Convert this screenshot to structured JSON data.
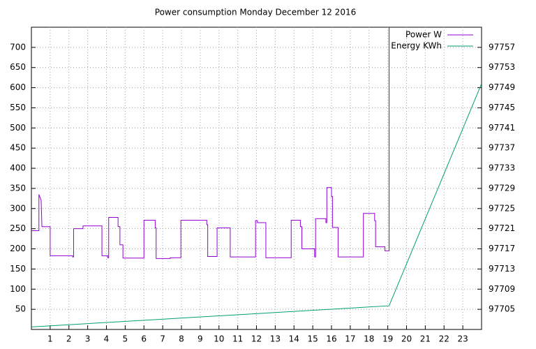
{
  "chart_data": {
    "type": "line",
    "title": "Power consumption Monday December 12 2016",
    "xlim": [
      0,
      24
    ],
    "xticks": [
      1,
      2,
      3,
      4,
      5,
      6,
      7,
      8,
      9,
      10,
      11,
      12,
      13,
      14,
      15,
      16,
      17,
      18,
      19,
      20,
      21,
      22,
      23
    ],
    "ylim": [
      0,
      750
    ],
    "yticks": [
      50,
      100,
      150,
      200,
      250,
      300,
      350,
      400,
      450,
      500,
      550,
      600,
      650,
      700
    ],
    "y2lim": [
      97701,
      97761
    ],
    "y2ticks": [
      97705,
      97709,
      97713,
      97717,
      97721,
      97725,
      97729,
      97733,
      97737,
      97741,
      97745,
      97749,
      97753,
      97757
    ],
    "grid": true,
    "legend": "top-right",
    "series": [
      {
        "name": "Power W",
        "color": "#9400d3",
        "x": [
          0,
          0.4,
          0.4,
          0.52,
          0.56,
          1.0,
          1.0,
          2.2,
          2.2,
          2.25,
          2.25,
          2.75,
          2.75,
          3.76,
          3.76,
          4.07,
          4.07,
          4.12,
          4.12,
          4.62,
          4.62,
          4.72,
          4.72,
          4.88,
          4.88,
          6.0,
          6.0,
          6.6,
          6.6,
          6.65,
          6.65,
          7.4,
          7.4,
          7.97,
          7.97,
          9.35,
          9.35,
          9.4,
          9.4,
          9.9,
          9.9,
          10.6,
          10.6,
          11.95,
          11.95,
          12.05,
          12.05,
          12.5,
          12.5,
          13.85,
          13.85,
          14.34,
          14.34,
          14.42,
          14.42,
          15.1,
          15.1,
          15.15,
          15.15,
          15.7,
          15.7,
          15.75,
          15.75,
          16.0,
          16.0,
          16.05,
          16.05,
          16.35,
          16.35,
          17.7,
          17.7,
          18.3,
          18.3,
          18.35,
          18.35,
          18.85,
          18.85,
          19.07,
          19.07
        ],
        "values": [
          245,
          245,
          335,
          320,
          255,
          255,
          183,
          183,
          180,
          180,
          250,
          250,
          257,
          257,
          183,
          183,
          178,
          178,
          278,
          278,
          255,
          255,
          210,
          210,
          177,
          177,
          271,
          271,
          252,
          252,
          176,
          176,
          178,
          178,
          271,
          271,
          260,
          260,
          181,
          181,
          252,
          252,
          180,
          180,
          270,
          270,
          265,
          265,
          178,
          178,
          271,
          271,
          255,
          255,
          200,
          200,
          180,
          180,
          275,
          275,
          265,
          265,
          352,
          352,
          330,
          330,
          253,
          253,
          180,
          180,
          288,
          288,
          270,
          270,
          205,
          205,
          195,
          195,
          760
        ]
      },
      {
        "name": "Energy KWh",
        "color": "#009e73",
        "axis": "y2",
        "x": [
          0,
          19.07,
          24
        ],
        "values": [
          97701.5,
          97705.7,
          97749.8
        ]
      }
    ]
  }
}
